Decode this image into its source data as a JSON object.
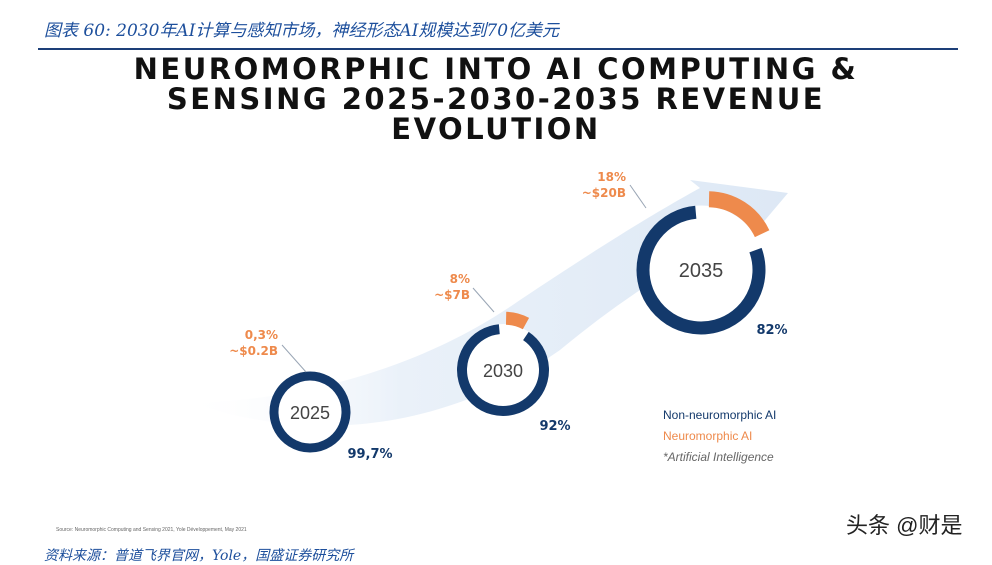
{
  "caption": "图表 60: 2030年AI计算与感知市场，神经形态AI规模达到70亿美元",
  "title_lines": [
    "NEUROMORPHIC INTO AI COMPUTING &",
    "SENSING 2025-2030-2035 REVENUE",
    "EVOLUTION"
  ],
  "chart_data": {
    "type": "donut",
    "charts": [
      {
        "year": "2025",
        "non_neuromorphic_pct_label": "99,7%",
        "neuromorphic_pct_label": "0,3%",
        "neuromorphic_value_label": "~$0.2B",
        "neuromorphic_share": 0.3,
        "non_neuromorphic_share": 99.7
      },
      {
        "year": "2030",
        "non_neuromorphic_pct_label": "92%",
        "neuromorphic_pct_label": "8%",
        "neuromorphic_value_label": "~$7B",
        "neuromorphic_share": 8,
        "non_neuromorphic_share": 92
      },
      {
        "year": "2035",
        "non_neuromorphic_pct_label": "82%",
        "neuromorphic_pct_label": "18%",
        "neuromorphic_value_label": "~$20B",
        "neuromorphic_share": 18,
        "non_neuromorphic_share": 82
      }
    ],
    "legend": {
      "non_neuromorphic": "Non-neuromorphic AI",
      "neuromorphic": "Neuromorphic AI",
      "note": "*Artificial Intelligence"
    }
  },
  "colors": {
    "non_neuromorphic": "#13396b",
    "neuromorphic": "#ee8a4c",
    "arrow": "#e6eef8",
    "caption": "#1d4f9c",
    "legend_note": "#666666"
  },
  "source_note": "Source: Neuromorphic Computing and Sensing 2021, Yole Développement, May 2021",
  "bottom_source": "资料来源：普道飞界官网，Yole，国盛证券研究所",
  "watermark": "头条 @财是"
}
